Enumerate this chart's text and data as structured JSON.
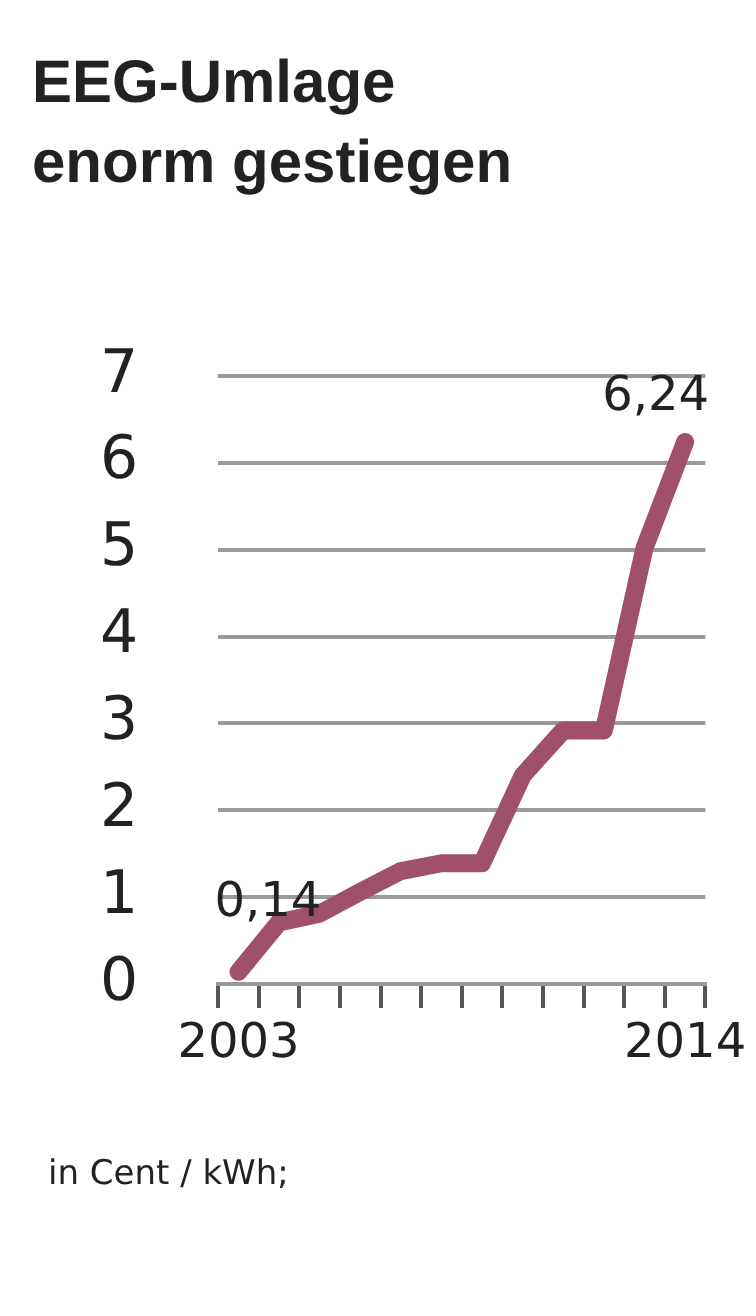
{
  "chart_data": {
    "type": "line",
    "title": "EEG-Umlage\nenorm gestiegen",
    "categories": [
      "2003",
      null,
      null,
      null,
      null,
      null,
      null,
      null,
      null,
      null,
      null,
      "2014"
    ],
    "series": [
      {
        "color": "#a0506a",
        "values": [
          0.14,
          0.71,
          0.81,
          1.06,
          1.3,
          1.39,
          1.39,
          2.4,
          2.92,
          2.92,
          5.02,
          6.24
        ],
        "value_labels": [
          "0,14",
          null,
          null,
          null,
          null,
          null,
          null,
          null,
          null,
          null,
          null,
          "6,24"
        ]
      }
    ],
    "ylim": [
      0,
      7
    ],
    "yticks": [
      0,
      1,
      2,
      3,
      4,
      5,
      6,
      7
    ],
    "grid": "y",
    "legend": false,
    "marker": "none",
    "line_style": "solid",
    "annotations": [
      "in Cent / kWh;"
    ]
  }
}
